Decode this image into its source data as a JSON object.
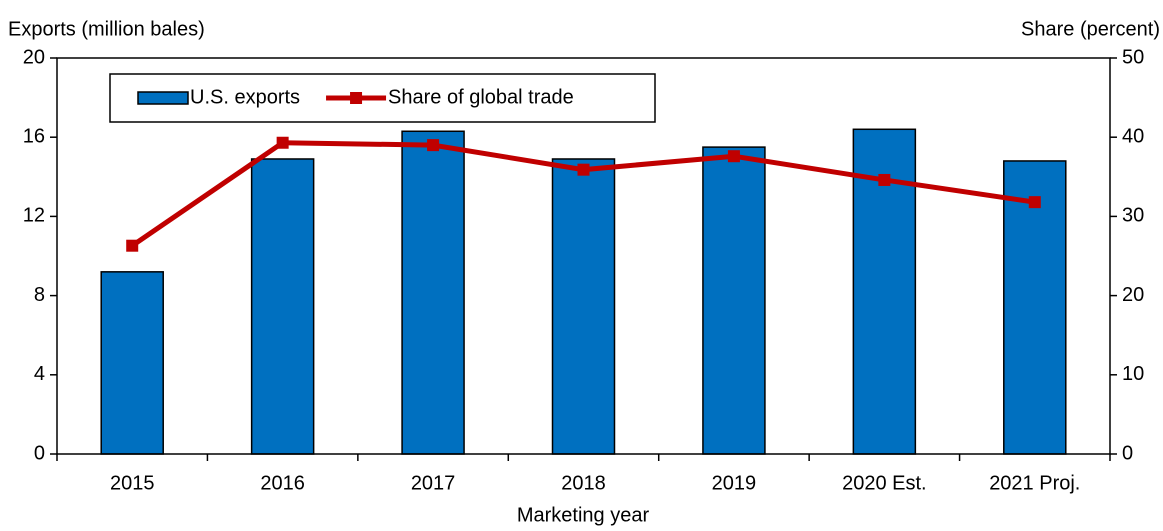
{
  "chart_data": {
    "type": "bar",
    "ylabel": "Exports (million bales)",
    "y2label": "Share (percent)",
    "xlabel": "Marketing year",
    "categories": [
      "2015",
      "2016",
      "2017",
      "2018",
      "2019",
      "2020 Est.",
      "2021 Proj."
    ],
    "series": [
      {
        "name": "U.S. exports",
        "type": "bar",
        "color": "#0070c0",
        "values": [
          9.2,
          14.9,
          16.3,
          14.9,
          15.5,
          16.4,
          14.8
        ]
      },
      {
        "name": "Share of global trade",
        "type": "line",
        "axis": "y2",
        "color": "#c00000",
        "values": [
          26.3,
          39.3,
          39.0,
          35.9,
          37.6,
          34.6,
          31.8
        ]
      }
    ],
    "ylim": [
      0,
      20
    ],
    "yticks": [
      0,
      4,
      8,
      12,
      16,
      20
    ],
    "y2lim": [
      0,
      50
    ],
    "y2ticks": [
      0,
      10,
      20,
      30,
      40,
      50
    ],
    "grid": false,
    "legend": "top-left"
  }
}
